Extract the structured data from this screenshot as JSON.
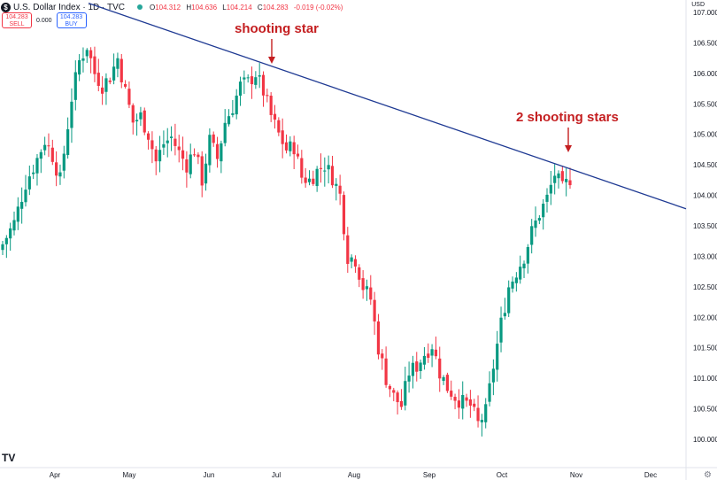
{
  "header": {
    "symbol_icon": "dollar-icon",
    "symbol_icon_glyph": "$",
    "title": "U.S. Dollar Index · 1D · TVC",
    "ohlc": [
      {
        "label": "O",
        "value": "104.312"
      },
      {
        "label": "H",
        "value": "104.636"
      },
      {
        "label": "L",
        "value": "104.214"
      },
      {
        "label": "C",
        "value": "104.283"
      },
      {
        "label": "",
        "value": "-0.019 (-0.02%)"
      }
    ],
    "currency": "USD"
  },
  "trade": {
    "sell_price": "104.283",
    "sell_label": "SELL",
    "spread": "0.000",
    "buy_price": "104.283",
    "buy_label": "BUY"
  },
  "colors": {
    "up": "#089981",
    "down": "#f23645",
    "trendline": "#1f3a93",
    "annotation": "#c41e20"
  },
  "chart_data": {
    "type": "candlestick",
    "title": "",
    "y_ticks": [
      "107.000",
      "106.500",
      "106.000",
      "105.500",
      "105.000",
      "104.500",
      "104.000",
      "103.500",
      "103.000",
      "102.500",
      "102.000",
      "101.500",
      "101.000",
      "100.500",
      "100.000"
    ],
    "ylim": [
      100.0,
      107.0
    ],
    "x_ticks": [
      "Apr",
      "May",
      "Jun",
      "Jul",
      "Aug",
      "Sep",
      "Oct",
      "Nov",
      "Dec"
    ],
    "annotations": [
      {
        "text": "shooting star"
      },
      {
        "text": "2 shooting stars"
      }
    ],
    "trendline": {
      "label": "",
      "from": 107.15,
      "to": 103.78
    },
    "close_path": [
      [
        0,
        103.2
      ],
      [
        3,
        103.55
      ],
      [
        6,
        104.2
      ],
      [
        9,
        104.6
      ],
      [
        11,
        104.9
      ],
      [
        13,
        104.65
      ],
      [
        15,
        104.25
      ],
      [
        18,
        105.6
      ],
      [
        20,
        106.2
      ],
      [
        22,
        106.45
      ],
      [
        24,
        106.0
      ],
      [
        26,
        105.8
      ],
      [
        28,
        105.95
      ],
      [
        30,
        106.25
      ],
      [
        32,
        105.7
      ],
      [
        34,
        105.2
      ],
      [
        36,
        105.3
      ],
      [
        38,
        105.0
      ],
      [
        40,
        104.55
      ],
      [
        42,
        104.85
      ],
      [
        44,
        104.95
      ],
      [
        46,
        104.7
      ],
      [
        48,
        104.5
      ],
      [
        50,
        104.75
      ],
      [
        52,
        104.25
      ],
      [
        54,
        104.9
      ],
      [
        56,
        104.6
      ],
      [
        58,
        105.2
      ],
      [
        60,
        105.45
      ],
      [
        62,
        105.8
      ],
      [
        64,
        105.85
      ],
      [
        66,
        106.0
      ],
      [
        68,
        105.7
      ],
      [
        70,
        105.3
      ],
      [
        72,
        105.0
      ],
      [
        74,
        104.75
      ],
      [
        76,
        104.8
      ],
      [
        78,
        104.3
      ],
      [
        80,
        104.25
      ],
      [
        82,
        104.4
      ],
      [
        84,
        104.5
      ],
      [
        86,
        104.3
      ],
      [
        88,
        104.0
      ],
      [
        90,
        103.0
      ],
      [
        92,
        102.95
      ],
      [
        94,
        102.5
      ],
      [
        96,
        102.3
      ],
      [
        98,
        101.5
      ],
      [
        100,
        101.0
      ],
      [
        102,
        100.7
      ],
      [
        104,
        100.55
      ],
      [
        106,
        101.1
      ],
      [
        108,
        101.2
      ],
      [
        110,
        101.4
      ],
      [
        112,
        101.55
      ],
      [
        114,
        101.1
      ],
      [
        116,
        100.85
      ],
      [
        118,
        100.7
      ],
      [
        120,
        100.6
      ],
      [
        122,
        100.55
      ],
      [
        124,
        100.25
      ],
      [
        126,
        100.45
      ],
      [
        128,
        101.2
      ],
      [
        130,
        101.9
      ],
      [
        132,
        102.5
      ],
      [
        134,
        102.75
      ],
      [
        136,
        103.0
      ],
      [
        138,
        103.4
      ],
      [
        140,
        103.7
      ],
      [
        142,
        103.95
      ],
      [
        144,
        104.35
      ],
      [
        146,
        104.1
      ],
      [
        148,
        104.28
      ]
    ]
  },
  "footer": {
    "logo": "TV",
    "settings_icon": "gear-icon",
    "settings_glyph": "⚙"
  }
}
